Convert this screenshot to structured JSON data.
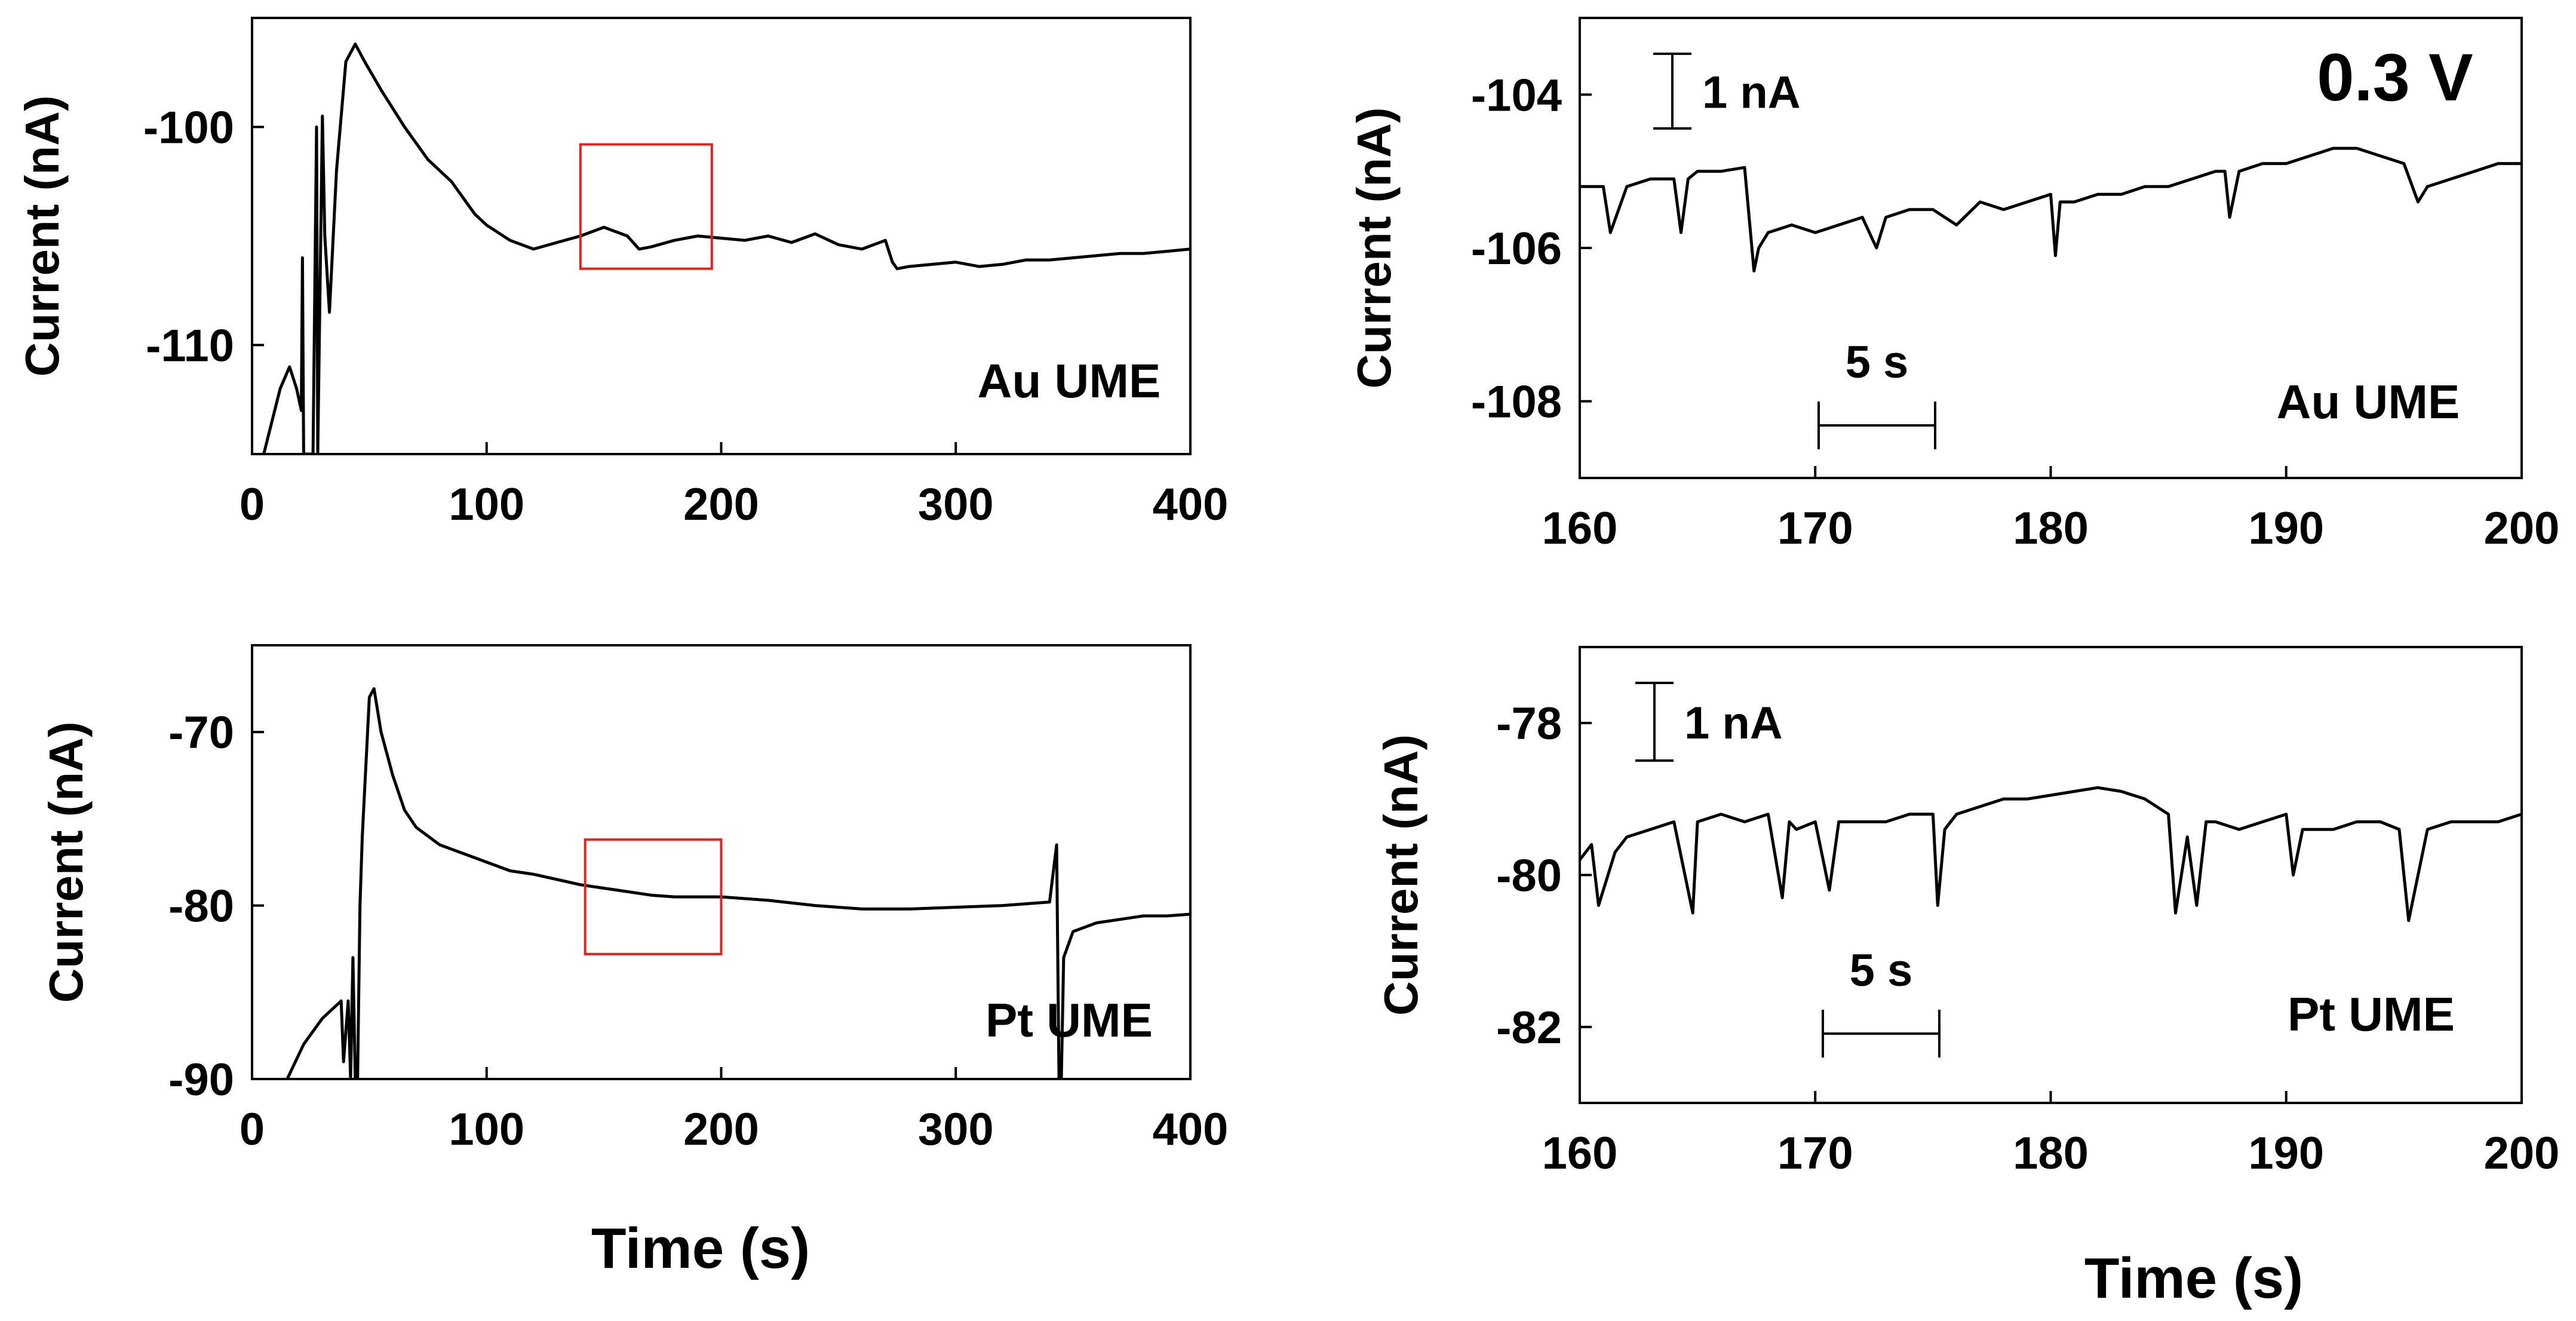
{
  "figure": {
    "shared_xlabel_left": "Time (s)",
    "shared_xlabel_right": "Time (s)",
    "voltage_label": "0.3 V"
  },
  "chart_data": [
    {
      "id": "au-full",
      "type": "line",
      "title": "",
      "annotation": "Au UME",
      "xlabel": "",
      "ylabel": "Current (nA)",
      "xlim": [
        0,
        400
      ],
      "ylim": [
        -115,
        -95
      ],
      "xticks": [
        0,
        100,
        200,
        300,
        400
      ],
      "yticks": [
        -100,
        -110
      ],
      "highlight_box": {
        "x": [
          140,
          196
        ],
        "y": [
          -106.5,
          -100.8
        ]
      },
      "series": [
        {
          "name": "Au UME current",
          "x": [
            5,
            12,
            16,
            19,
            21,
            21.5,
            22,
            24,
            26,
            27.5,
            28,
            30,
            31,
            33,
            36,
            40,
            44,
            48,
            55,
            65,
            75,
            85,
            95,
            100,
            110,
            120,
            130,
            140,
            150,
            160,
            165,
            170,
            180,
            190,
            200,
            210,
            220,
            230,
            240,
            250,
            260,
            270,
            273,
            275,
            280,
            290,
            300,
            310,
            320,
            330,
            340,
            350,
            360,
            370,
            380,
            390,
            400
          ],
          "y": [
            -115,
            -112,
            -111,
            -112,
            -113,
            -106,
            -115,
            -115,
            -115,
            -100,
            -115,
            -99.5,
            -105,
            -108.5,
            -102,
            -97,
            -96.2,
            -97,
            -98.3,
            -100,
            -101.5,
            -102.5,
            -104,
            -104.5,
            -105.2,
            -105.6,
            -105.3,
            -105,
            -104.6,
            -105,
            -105.6,
            -105.5,
            -105.2,
            -105,
            -105.1,
            -105.2,
            -105,
            -105.3,
            -104.9,
            -105.4,
            -105.6,
            -105.2,
            -106.2,
            -106.5,
            -106.4,
            -106.3,
            -106.2,
            -106.4,
            -106.3,
            -106.1,
            -106.1,
            -106.0,
            -105.9,
            -105.8,
            -105.8,
            -105.7,
            -105.6
          ]
        }
      ]
    },
    {
      "id": "au-zoom",
      "type": "line",
      "title": "",
      "annotation": "Au UME",
      "xlabel": "",
      "ylabel": "Current (nA)",
      "xlim": [
        160,
        200
      ],
      "ylim": [
        -109,
        -103
      ],
      "xticks": [
        160,
        170,
        180,
        190,
        200
      ],
      "yticks": [
        -104,
        -106,
        -108
      ],
      "scale_bar_current": "1 nA",
      "scale_bar_time": "5 s",
      "series": [
        {
          "name": "Au UME current (zoom)",
          "x": [
            160,
            161,
            161.3,
            162,
            163,
            164,
            164.3,
            164.6,
            165,
            166,
            167,
            167.4,
            167.6,
            168,
            169,
            170,
            171,
            172,
            172.6,
            173,
            174,
            175,
            176,
            177,
            178,
            179,
            180,
            180.2,
            180.4,
            181,
            182,
            183,
            184,
            185,
            186,
            187,
            187.4,
            187.6,
            188,
            189,
            190,
            191,
            192,
            193,
            194,
            195,
            195.6,
            196,
            197,
            198,
            199,
            200
          ],
          "y": [
            -105.2,
            -105.2,
            -105.8,
            -105.2,
            -105.1,
            -105.1,
            -105.8,
            -105.1,
            -105.0,
            -105.0,
            -104.95,
            -106.3,
            -106.0,
            -105.8,
            -105.7,
            -105.8,
            -105.7,
            -105.6,
            -106.0,
            -105.6,
            -105.5,
            -105.5,
            -105.7,
            -105.4,
            -105.5,
            -105.4,
            -105.3,
            -106.1,
            -105.4,
            -105.4,
            -105.3,
            -105.3,
            -105.2,
            -105.2,
            -105.1,
            -105.0,
            -105.0,
            -105.6,
            -105.0,
            -104.9,
            -104.9,
            -104.8,
            -104.7,
            -104.7,
            -104.8,
            -104.9,
            -105.4,
            -105.2,
            -105.1,
            -105.0,
            -104.9,
            -104.9
          ]
        }
      ]
    },
    {
      "id": "pt-full",
      "type": "line",
      "title": "",
      "annotation": "Pt UME",
      "xlabel": "Time (s)",
      "ylabel": "Current (nA)",
      "xlim": [
        0,
        400
      ],
      "ylim": [
        -90,
        -65
      ],
      "xticks": [
        0,
        100,
        200,
        300,
        400
      ],
      "yticks": [
        -70,
        -80,
        -90
      ],
      "highlight_box": {
        "x": [
          142,
          200
        ],
        "y": [
          -82.8,
          -76.2
        ]
      },
      "series": [
        {
          "name": "Pt UME current",
          "x": [
            15,
            22,
            30,
            38,
            39,
            41,
            42,
            43,
            44,
            45,
            46,
            47,
            50,
            52,
            55,
            60,
            65,
            70,
            80,
            90,
            100,
            110,
            120,
            130,
            140,
            150,
            160,
            170,
            180,
            190,
            200,
            220,
            240,
            260,
            280,
            300,
            320,
            340,
            343,
            344,
            345,
            346,
            350,
            360,
            370,
            380,
            390,
            400
          ],
          "y": [
            -90,
            -88,
            -86.5,
            -85.5,
            -89,
            -85.5,
            -90,
            -83,
            -90,
            -90,
            -80,
            -76,
            -68,
            -67.5,
            -70,
            -72.5,
            -74.5,
            -75.5,
            -76.5,
            -77,
            -77.5,
            -78,
            -78.2,
            -78.5,
            -78.8,
            -79.0,
            -79.2,
            -79.4,
            -79.5,
            -79.5,
            -79.5,
            -79.7,
            -80,
            -80.2,
            -80.2,
            -80.1,
            -80.0,
            -79.8,
            -76.5,
            -90,
            -90,
            -83,
            -81.5,
            -81,
            -80.8,
            -80.6,
            -80.6,
            -80.5
          ]
        }
      ]
    },
    {
      "id": "pt-zoom",
      "type": "line",
      "title": "",
      "annotation": "Pt UME",
      "xlabel": "Time (s)",
      "ylabel": "Current (nA)",
      "xlim": [
        160,
        200
      ],
      "ylim": [
        -83,
        -77
      ],
      "xticks": [
        160,
        170,
        180,
        190,
        200
      ],
      "yticks": [
        -78,
        -80,
        -82
      ],
      "scale_bar_current": "1 nA",
      "scale_bar_time": "5 s",
      "series": [
        {
          "name": "Pt UME current (zoom)",
          "x": [
            160,
            160.5,
            160.8,
            161.5,
            162,
            163,
            164,
            164.8,
            165,
            166,
            167,
            168,
            168.6,
            168.9,
            169.2,
            170,
            170.6,
            171,
            172,
            173,
            174,
            175,
            175.2,
            175.5,
            176,
            177,
            178,
            179,
            180,
            181,
            182,
            183,
            184,
            185,
            185.3,
            185.8,
            186.2,
            186.6,
            187,
            188,
            189,
            190,
            190.3,
            190.7,
            191,
            192,
            193,
            194,
            194.8,
            195.2,
            196,
            197,
            198,
            199,
            200
          ],
          "y": [
            -79.8,
            -79.6,
            -80.4,
            -79.7,
            -79.5,
            -79.4,
            -79.3,
            -80.5,
            -79.3,
            -79.2,
            -79.3,
            -79.2,
            -80.3,
            -79.3,
            -79.4,
            -79.3,
            -80.2,
            -79.3,
            -79.3,
            -79.3,
            -79.2,
            -79.2,
            -80.4,
            -79.4,
            -79.2,
            -79.1,
            -79.0,
            -79.0,
            -78.95,
            -78.9,
            -78.85,
            -78.9,
            -79.0,
            -79.2,
            -80.5,
            -79.5,
            -80.4,
            -79.3,
            -79.3,
            -79.4,
            -79.3,
            -79.2,
            -80.0,
            -79.4,
            -79.4,
            -79.4,
            -79.3,
            -79.3,
            -79.4,
            -80.6,
            -79.4,
            -79.3,
            -79.3,
            -79.3,
            -79.2
          ]
        }
      ]
    }
  ]
}
